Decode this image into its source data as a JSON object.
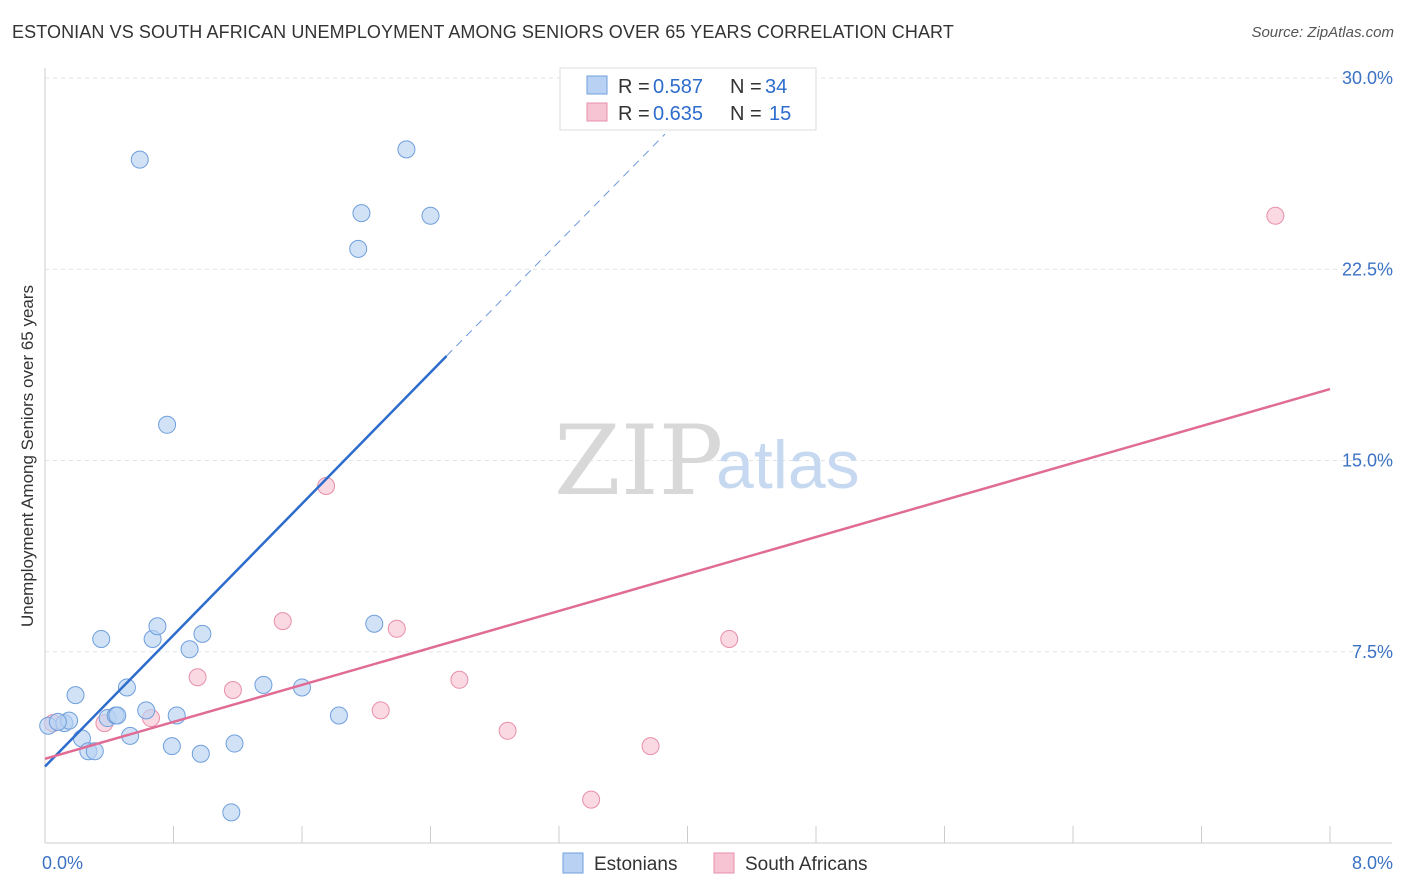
{
  "title": "ESTONIAN VS SOUTH AFRICAN UNEMPLOYMENT AMONG SENIORS OVER 65 YEARS CORRELATION CHART",
  "source": "Source: ZipAtlas.com",
  "watermark": {
    "zip": "ZIP",
    "atlas": "atlas"
  },
  "colors": {
    "estonians_fill": "#b9d2f3",
    "estonians_stroke": "#6f9fdc",
    "estonians_line": "#2d6ccc",
    "south_africans_fill": "#f7c4d4",
    "south_africans_stroke": "#e88faa",
    "south_africans_line": "#e06c95",
    "grid": "#e3e3e3",
    "axis": "#cccccc"
  },
  "legend": {
    "rows": [
      {
        "r_label": "R = ",
        "r_value": "0.587",
        "n_label": "N = ",
        "n_value": "34"
      },
      {
        "r_label": "R = ",
        "r_value": "0.635",
        "n_label": "N = ",
        "n_value": "15"
      }
    ]
  },
  "chart_data": {
    "type": "scatter",
    "title": "ESTONIAN VS SOUTH AFRICAN UNEMPLOYMENT AMONG SENIORS OVER 65 YEARS CORRELATION CHART",
    "xlabel": "",
    "ylabel": "Unemployment Among Seniors over 65 years",
    "xlim": [
      0,
      8.0
    ],
    "ylim": [
      0,
      30.0
    ],
    "x_tick_labels": [
      "0.0%",
      "8.0%"
    ],
    "y_ticks": [
      7.5,
      15.0,
      22.5,
      30.0
    ],
    "y_tick_labels": [
      "7.5%",
      "15.0%",
      "22.5%",
      "30.0%"
    ],
    "grid": true,
    "series": [
      {
        "name": "Estonians",
        "r": 0.587,
        "n": 34,
        "points": [
          [
            0.02,
            4.6
          ],
          [
            0.12,
            4.7
          ],
          [
            0.15,
            4.8
          ],
          [
            0.23,
            4.1
          ],
          [
            0.27,
            3.6
          ],
          [
            0.31,
            3.6
          ],
          [
            0.19,
            5.8
          ],
          [
            0.35,
            8.0
          ],
          [
            0.39,
            4.9
          ],
          [
            0.44,
            5.0
          ],
          [
            0.45,
            5.0
          ],
          [
            0.51,
            6.1
          ],
          [
            0.53,
            4.2
          ],
          [
            0.59,
            26.8
          ],
          [
            0.63,
            5.2
          ],
          [
            0.67,
            8.0
          ],
          [
            0.7,
            8.5
          ],
          [
            0.76,
            16.4
          ],
          [
            0.79,
            3.8
          ],
          [
            0.82,
            5.0
          ],
          [
            0.9,
            7.6
          ],
          [
            0.97,
            3.5
          ],
          [
            0.98,
            8.2
          ],
          [
            1.16,
            1.2
          ],
          [
            1.18,
            3.9
          ],
          [
            1.36,
            6.2
          ],
          [
            1.6,
            6.1
          ],
          [
            1.83,
            5.0
          ],
          [
            1.95,
            23.3
          ],
          [
            1.97,
            24.7
          ],
          [
            2.05,
            8.6
          ],
          [
            2.25,
            27.2
          ],
          [
            2.4,
            24.6
          ],
          [
            0.08,
            4.75
          ]
        ],
        "trend": {
          "x": [
            0.0,
            2.5
          ],
          "y": [
            3.0,
            19.1
          ]
        },
        "trend_extension": {
          "x": [
            2.5,
            3.86
          ],
          "y": [
            19.1,
            27.8
          ]
        }
      },
      {
        "name": "South Africans",
        "r": 0.635,
        "n": 15,
        "points": [
          [
            0.05,
            4.7
          ],
          [
            0.37,
            4.7
          ],
          [
            0.66,
            4.9
          ],
          [
            0.95,
            6.5
          ],
          [
            1.17,
            6.0
          ],
          [
            1.48,
            8.7
          ],
          [
            1.75,
            14.0
          ],
          [
            2.09,
            5.2
          ],
          [
            2.19,
            8.4
          ],
          [
            2.58,
            6.4
          ],
          [
            2.88,
            4.4
          ],
          [
            3.4,
            1.7
          ],
          [
            3.77,
            3.8
          ],
          [
            4.26,
            8.0
          ],
          [
            7.66,
            24.6
          ]
        ],
        "trend": {
          "x": [
            0.0,
            8.0
          ],
          "y": [
            3.3,
            17.8
          ]
        }
      }
    ],
    "legend_entries": [
      "Estonians",
      "South Africans"
    ]
  }
}
